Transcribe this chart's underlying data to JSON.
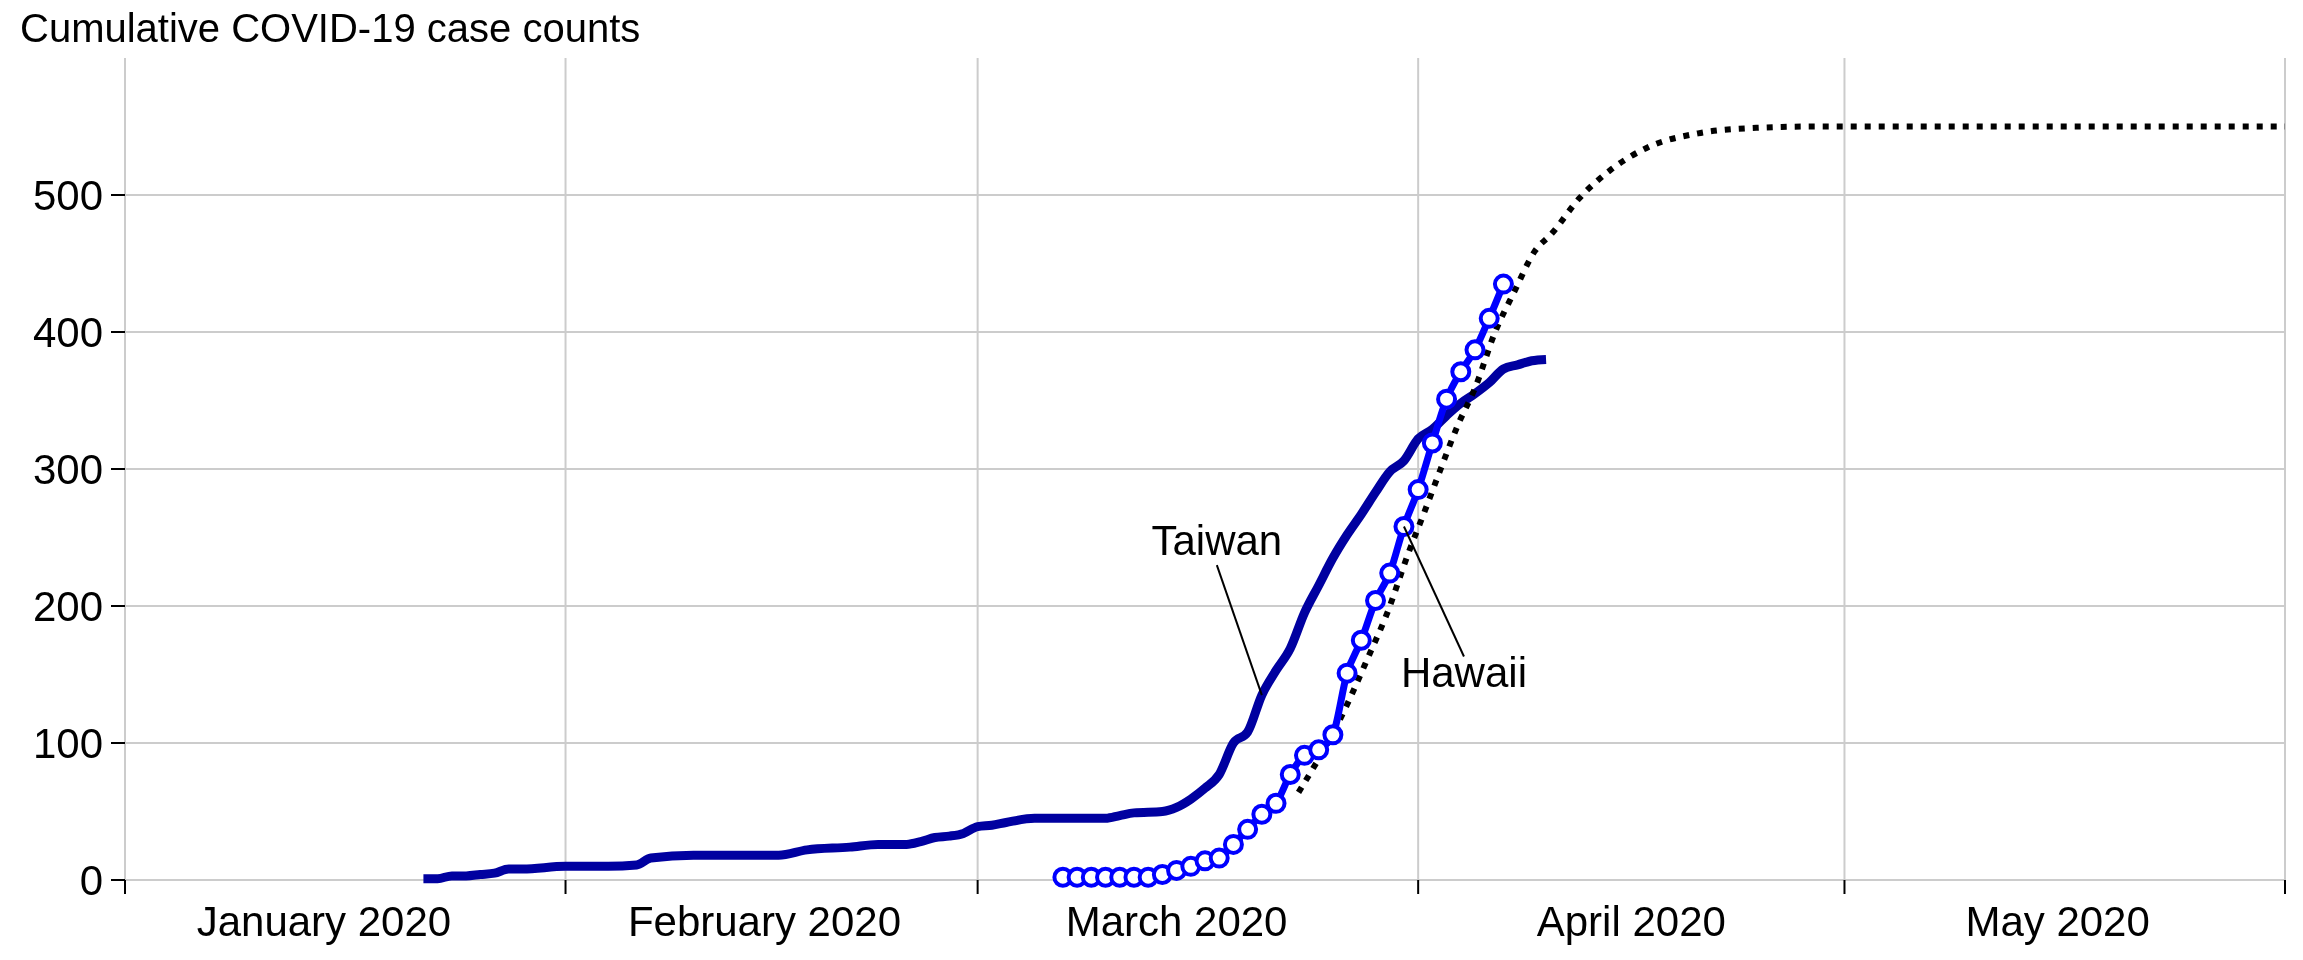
{
  "chart_data": {
    "type": "line",
    "title": "Cumulative COVID-19 case counts",
    "xlim": [
      "2020-01-01",
      "2020-06-01"
    ],
    "xticks": [
      {
        "value": "2020-01-01",
        "label": null
      },
      {
        "value": "2020-01-15",
        "label": "January 2020"
      },
      {
        "value": "2020-02-01",
        "label": null
      },
      {
        "value": "2020-02-15",
        "label": "February 2020"
      },
      {
        "value": "2020-03-01",
        "label": null
      },
      {
        "value": "2020-03-15",
        "label": "March 2020"
      },
      {
        "value": "2020-04-01",
        "label": null
      },
      {
        "value": "2020-04-16",
        "label": "April 2020"
      },
      {
        "value": "2020-05-01",
        "label": null
      },
      {
        "value": "2020-05-16",
        "label": "May 2020"
      },
      {
        "value": "2020-06-01",
        "label": null
      }
    ],
    "ylim": [
      0,
      600
    ],
    "yticks": [
      0,
      100,
      200,
      300,
      400,
      500
    ],
    "grid": true,
    "series": [
      {
        "color": "#0000a0",
        "marker": "none",
        "line_style": "solid",
        "x": [
          "2020-01-22",
          "2020-01-23",
          "2020-01-24",
          "2020-01-25",
          "2020-01-26",
          "2020-01-27",
          "2020-01-28",
          "2020-01-29",
          "2020-02-01",
          "2020-02-04",
          "2020-02-06",
          "2020-02-07",
          "2020-02-10",
          "2020-02-16",
          "2020-02-18",
          "2020-02-21",
          "2020-02-23",
          "2020-02-25",
          "2020-02-26",
          "2020-02-27",
          "2020-02-28",
          "2020-02-29",
          "2020-03-01",
          "2020-03-02",
          "2020-03-03",
          "2020-03-05",
          "2020-03-06",
          "2020-03-10",
          "2020-03-11",
          "2020-03-12",
          "2020-03-14",
          "2020-03-15",
          "2020-03-16",
          "2020-03-17",
          "2020-03-18",
          "2020-03-19",
          "2020-03-20",
          "2020-03-21",
          "2020-03-22",
          "2020-03-23",
          "2020-03-24",
          "2020-03-25",
          "2020-03-26",
          "2020-03-27",
          "2020-03-28",
          "2020-03-29",
          "2020-03-30",
          "2020-03-31",
          "2020-04-01",
          "2020-04-02",
          "2020-04-03",
          "2020-04-04",
          "2020-04-05",
          "2020-04-06",
          "2020-04-07",
          "2020-04-08",
          "2020-04-09",
          "2020-04-10"
        ],
        "values": [
          1,
          1,
          3,
          3,
          4,
          5,
          8,
          8,
          10,
          10,
          11,
          16,
          18,
          18,
          22,
          24,
          26,
          26,
          28,
          31,
          32,
          34,
          39,
          40,
          42,
          45,
          45,
          45,
          47,
          49,
          50,
          53,
          59,
          67,
          77,
          100,
          108,
          135,
          153,
          169,
          195,
          215,
          235,
          252,
          267,
          283,
          298,
          306,
          322,
          329,
          339,
          348,
          355,
          363,
          373,
          376,
          379,
          380
        ]
      },
      {
        "color": "#000000",
        "marker": "none",
        "line_style": "dotted",
        "x": [
          "2020-03-23T14:00",
          "2020-03-26T14:00",
          "2020-03-28T14:00",
          "2020-03-29T19:00",
          "2020-03-31T07:00",
          "2020-04-01T10:00",
          "2020-04-02T14:00",
          "2020-04-03T19:00",
          "2020-04-05",
          "2020-04-06T10:00",
          "2020-04-07T19:00",
          "2020-04-09T05:00",
          "2020-04-10T10:00",
          "2020-04-12T07:00",
          "2020-04-14T12:00",
          "2020-04-17T05:00",
          "2020-04-20T17:00",
          "2020-04-24T19:00",
          "2020-04-29T05:00",
          "2020-06-01"
        ],
        "values": [
          64,
          119,
          165,
          194,
          238,
          268,
          300,
          332,
          359,
          400,
          430,
          459,
          472,
          497,
          518,
          535,
          545,
          549,
          550,
          550
        ]
      },
      {
        "color": "#0000ff",
        "marker": "circle",
        "line_style": "solid",
        "x": [
          "2020-03-07",
          "2020-03-08",
          "2020-03-09",
          "2020-03-10",
          "2020-03-11",
          "2020-03-12",
          "2020-03-13",
          "2020-03-14",
          "2020-03-15",
          "2020-03-16",
          "2020-03-17",
          "2020-03-18",
          "2020-03-19",
          "2020-03-20",
          "2020-03-21",
          "2020-03-22",
          "2020-03-23",
          "2020-03-24",
          "2020-03-25",
          "2020-03-26",
          "2020-03-27",
          "2020-03-28",
          "2020-03-29",
          "2020-03-30",
          "2020-03-31",
          "2020-04-01",
          "2020-04-02",
          "2020-04-03",
          "2020-04-04",
          "2020-04-05",
          "2020-04-06",
          "2020-04-07"
        ],
        "values": [
          2,
          2,
          2,
          2,
          2,
          2,
          2,
          4,
          7,
          10,
          14,
          16,
          26,
          37,
          48,
          56,
          77,
          91,
          95,
          106,
          151,
          175,
          204,
          224,
          258,
          285,
          319,
          351,
          371,
          387,
          410,
          435
        ]
      }
    ],
    "annotations": [
      {
        "text": "Taiwan",
        "x": "2020-03-21",
        "y": 135
      },
      {
        "text": "Hawaii",
        "x": "2020-03-31",
        "y": 258
      }
    ]
  }
}
